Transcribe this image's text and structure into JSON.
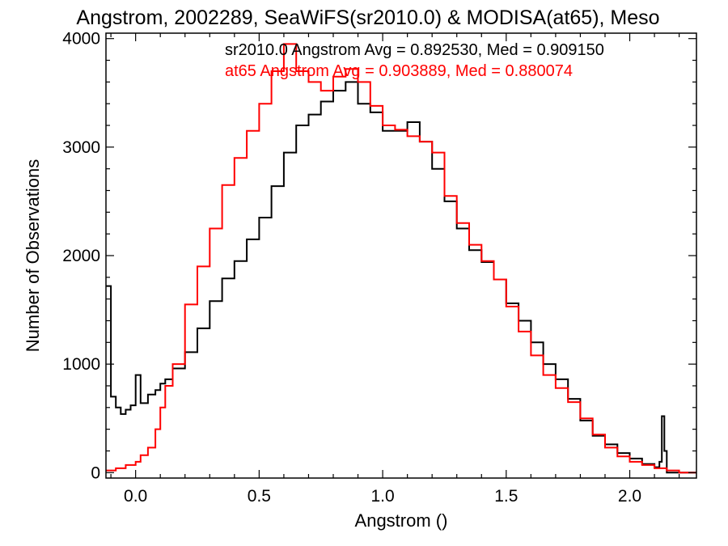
{
  "colors": {
    "black_series": "#000000",
    "red_series": "#ff0000",
    "background": "#ffffff"
  },
  "chart_data": {
    "type": "line",
    "style": "step-histogram",
    "title": "Angstrom, 2002289, SeaWiFS(sr2010.0) & MODISA(at65), Meso",
    "xlabel": "Angstrom ()",
    "ylabel": "Number of Observations",
    "xlim": [
      -0.12,
      2.27
    ],
    "ylim": [
      -50,
      4050
    ],
    "xticks": [
      "0.0",
      "0.5",
      "1.0",
      "1.5",
      "2.0"
    ],
    "yticks": [
      "0",
      "1000",
      "2000",
      "3000",
      "4000"
    ],
    "grid": false,
    "annotations": [
      {
        "text": "sr2010.0 Angstrom Avg = 0.892530, Med = 0.909150",
        "color": "#000000"
      },
      {
        "text": "at65 Angstrom Avg = 0.903889, Med = 0.880074",
        "color": "#ff0000"
      }
    ],
    "series": [
      {
        "color": "#000000",
        "x": [
          -0.12,
          -0.1,
          -0.08,
          -0.06,
          -0.04,
          -0.02,
          0.0,
          0.02,
          0.05,
          0.08,
          0.1,
          0.12,
          0.15,
          0.2,
          0.25,
          0.3,
          0.35,
          0.4,
          0.45,
          0.5,
          0.55,
          0.6,
          0.65,
          0.7,
          0.75,
          0.8,
          0.85,
          0.9,
          0.95,
          1.0,
          1.05,
          1.1,
          1.15,
          1.2,
          1.25,
          1.3,
          1.35,
          1.4,
          1.45,
          1.5,
          1.55,
          1.6,
          1.65,
          1.7,
          1.75,
          1.8,
          1.85,
          1.9,
          1.95,
          2.0,
          2.05,
          2.1,
          2.12,
          2.13,
          2.14,
          2.15,
          2.2,
          2.27
        ],
        "y": [
          1720,
          700,
          600,
          540,
          580,
          620,
          900,
          640,
          720,
          760,
          820,
          860,
          960,
          1110,
          1330,
          1580,
          1790,
          1950,
          2150,
          2350,
          2640,
          2950,
          3200,
          3300,
          3420,
          3520,
          3600,
          3400,
          3320,
          3150,
          3150,
          3230,
          3050,
          2800,
          2500,
          2250,
          2050,
          1940,
          1780,
          1560,
          1400,
          1200,
          1000,
          860,
          680,
          480,
          340,
          260,
          180,
          130,
          80,
          50,
          100,
          520,
          200,
          0,
          0,
          0
        ]
      },
      {
        "color": "#ff0000",
        "x": [
          -0.12,
          -0.08,
          -0.04,
          0.0,
          0.02,
          0.05,
          0.08,
          0.1,
          0.12,
          0.15,
          0.2,
          0.25,
          0.3,
          0.35,
          0.4,
          0.45,
          0.5,
          0.55,
          0.6,
          0.65,
          0.7,
          0.75,
          0.8,
          0.85,
          0.9,
          0.95,
          1.0,
          1.05,
          1.1,
          1.15,
          1.2,
          1.25,
          1.3,
          1.35,
          1.4,
          1.45,
          1.5,
          1.55,
          1.6,
          1.65,
          1.7,
          1.75,
          1.8,
          1.85,
          1.9,
          1.95,
          2.0,
          2.05,
          2.1,
          2.15,
          2.2,
          2.27
        ],
        "y": [
          20,
          40,
          70,
          100,
          160,
          230,
          400,
          600,
          800,
          1000,
          1550,
          1900,
          2250,
          2650,
          2900,
          3150,
          3400,
          3700,
          3950,
          3700,
          3600,
          3520,
          3650,
          3720,
          3600,
          3380,
          3200,
          3160,
          3100,
          3050,
          2950,
          2550,
          2300,
          2100,
          1950,
          1780,
          1530,
          1300,
          1080,
          900,
          780,
          650,
          500,
          350,
          230,
          150,
          100,
          70,
          40,
          20,
          0,
          0
        ]
      }
    ]
  }
}
